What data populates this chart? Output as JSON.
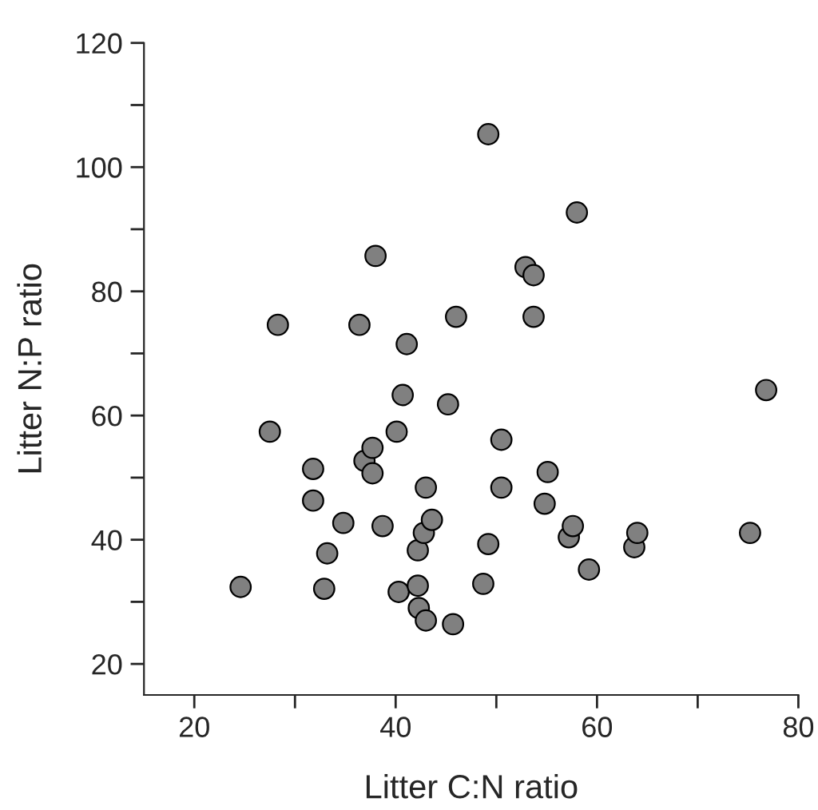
{
  "chart_data": {
    "type": "scatter",
    "xlabel": "Litter C:N ratio",
    "ylabel": "Litter N:P ratio",
    "x": [
      24.6,
      27.5,
      28.3,
      31.8,
      31.8,
      32.9,
      33.2,
      34.8,
      36.4,
      36.9,
      37.7,
      37.7,
      38.0,
      38.7,
      40.1,
      40.3,
      40.7,
      41.1,
      42.2,
      42.2,
      42.3,
      43.0,
      42.8,
      43.0,
      43.6,
      45.2,
      45.7,
      46.0,
      48.7,
      49.2,
      49.2,
      50.5,
      50.5,
      52.9,
      53.7,
      53.7,
      54.8,
      55.1,
      57.2,
      57.6,
      58.0,
      59.2,
      63.7,
      64.0,
      75.2,
      76.8
    ],
    "values": [
      32.4,
      57.4,
      74.6,
      51.4,
      46.3,
      32.1,
      37.8,
      42.7,
      74.6,
      52.7,
      54.8,
      50.7,
      85.7,
      42.2,
      57.4,
      31.6,
      63.3,
      71.5,
      38.3,
      32.6,
      29.0,
      48.4,
      41.1,
      27.0,
      43.2,
      61.8,
      26.4,
      75.9,
      32.9,
      39.3,
      105.3,
      48.4,
      56.1,
      83.9,
      82.6,
      75.9,
      45.8,
      50.9,
      40.4,
      42.2,
      92.7,
      35.2,
      38.8,
      41.1,
      41.1,
      64.1
    ],
    "color": "#808080",
    "marker": "circle",
    "xlim": [
      15,
      80
    ],
    "ylim": [
      15,
      120
    ],
    "xticks": [
      20,
      {
        "value": 30,
        "label": null
      },
      40,
      {
        "value": 50,
        "label": null
      },
      60,
      {
        "value": 70,
        "label": null
      },
      80
    ],
    "yticks": [
      20,
      {
        "value": 30,
        "label": null
      },
      40,
      {
        "value": 50,
        "label": null
      },
      60,
      {
        "value": 70,
        "label": null
      },
      80,
      {
        "value": 90,
        "label": null
      },
      100,
      {
        "value": 110,
        "label": null
      },
      120
    ],
    "grid": false,
    "legend": false
  }
}
